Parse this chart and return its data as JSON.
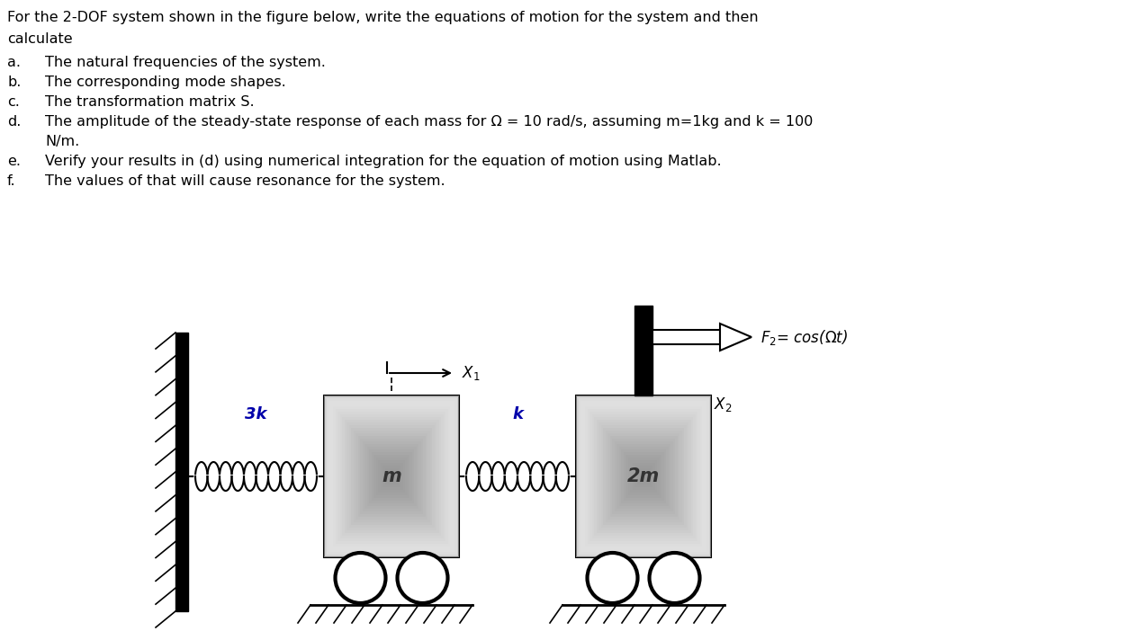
{
  "bg_color": "#ffffff",
  "text_color": "#000000",
  "title_line1": "For the 2-DOF system shown in the figure below, write the equations of motion for the system and then",
  "title_line2": "calculate",
  "items": [
    [
      "a.",
      "The natural frequencies of the system."
    ],
    [
      "b.",
      "The corresponding mode shapes."
    ],
    [
      "c.",
      "The transformation matrix S."
    ],
    [
      "d.",
      "The amplitude of the steady-state response of each mass for Ω = 10 rad/s, assuming m=1kg and k = 100"
    ],
    [
      "",
      "N/m."
    ],
    [
      "e.",
      "Verify your results in (d) using numerical integration for the equation of motion using Matlab."
    ],
    [
      "f.",
      "The values of that will cause resonance for the system."
    ]
  ],
  "spring1_label": "3k",
  "spring2_label": "k",
  "spring_label_color": "#0000aa",
  "mass1_label": "m",
  "mass2_label": "2m",
  "force_label": "$F_2$= cos(Ωt)",
  "x1_label": "$X_1$",
  "x2_label": "$X_2$",
  "wall_color": "#000000",
  "mass_color_light": "#d8d8d8",
  "mass_color_dark": "#888888",
  "wheel_color": "#000000",
  "ground_color": "#000000",
  "post_color": "#000000"
}
